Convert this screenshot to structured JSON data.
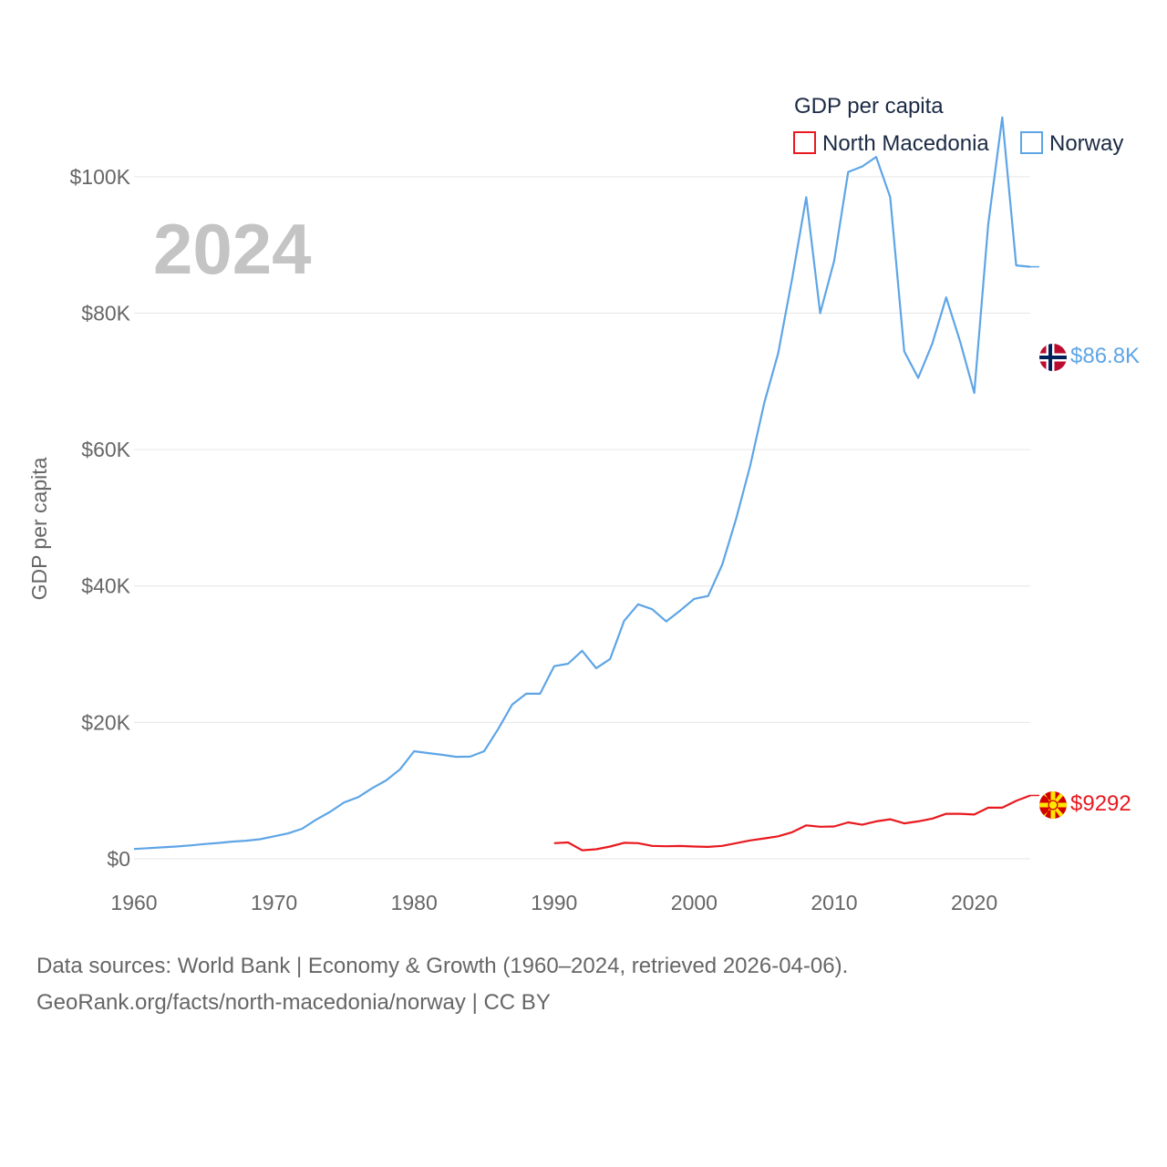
{
  "chart_data": {
    "type": "line",
    "ylabel": "GDP per capita",
    "year_label": "2024",
    "legend": {
      "title": "GDP per capita",
      "placement": "top-right"
    },
    "xlim": [
      1960,
      2024
    ],
    "ylim": [
      0,
      110000
    ],
    "xticks": [
      1960,
      1970,
      1980,
      1990,
      2000,
      2010,
      2020
    ],
    "xtick_labels": [
      "1960",
      "1970",
      "1980",
      "1990",
      "2000",
      "2010",
      "2020"
    ],
    "yticks": [
      0,
      20000,
      40000,
      60000,
      80000,
      100000
    ],
    "ytick_labels": [
      "$0",
      "$20K",
      "$40K",
      "$60K",
      "$80K",
      "$100K"
    ],
    "series": [
      {
        "name": "North Macedonia",
        "color": "#e8191f",
        "end_label": "$9292",
        "flag": "north-macedonia-flag-icon",
        "x": [
          1990,
          1991,
          1992,
          1993,
          1994,
          1995,
          1996,
          1997,
          1998,
          1999,
          2000,
          2001,
          2002,
          2003,
          2004,
          2005,
          2006,
          2007,
          2008,
          2009,
          2010,
          2011,
          2012,
          2013,
          2014,
          2015,
          2016,
          2017,
          2018,
          2019,
          2020,
          2021,
          2022,
          2023,
          2024
        ],
        "values": [
          2300,
          2400,
          1250,
          1400,
          1800,
          2350,
          2300,
          1900,
          1850,
          1880,
          1800,
          1750,
          1900,
          2300,
          2700,
          3000,
          3300,
          3900,
          4900,
          4700,
          4750,
          5350,
          5000,
          5500,
          5800,
          5200,
          5500,
          5900,
          6600,
          6600,
          6500,
          7500,
          7500,
          8500,
          9292
        ]
      },
      {
        "name": "Norway",
        "color": "#5ea5e6",
        "end_label": "$86.8K",
        "flag": "norway-flag-icon",
        "x": [
          1960,
          1961,
          1962,
          1963,
          1964,
          1965,
          1966,
          1967,
          1968,
          1969,
          1970,
          1971,
          1972,
          1973,
          1974,
          1975,
          1976,
          1977,
          1978,
          1979,
          1980,
          1981,
          1982,
          1983,
          1984,
          1985,
          1986,
          1987,
          1988,
          1989,
          1990,
          1991,
          1992,
          1993,
          1994,
          1995,
          1996,
          1997,
          1998,
          1999,
          2000,
          2001,
          2002,
          2003,
          2004,
          2005,
          2006,
          2007,
          2008,
          2009,
          2010,
          2011,
          2012,
          2013,
          2014,
          2015,
          2016,
          2017,
          2018,
          2019,
          2020,
          2021,
          2022,
          2023,
          2024
        ],
        "values": [
          1440,
          1560,
          1690,
          1800,
          1960,
          2160,
          2320,
          2520,
          2660,
          2880,
          3300,
          3730,
          4410,
          5740,
          6880,
          8280,
          9040,
          10350,
          11500,
          13130,
          15770,
          15500,
          15250,
          14950,
          14980,
          15770,
          19000,
          22600,
          24200,
          24200,
          28240,
          28600,
          30500,
          27950,
          29300,
          34900,
          37320,
          36600,
          34800,
          36400,
          38100,
          38540,
          43100,
          49900,
          57600,
          66800,
          74100,
          85100,
          97000,
          80000,
          87700,
          100700,
          101500,
          102900,
          97000,
          74400,
          70500,
          75500,
          82300,
          75800,
          68300,
          93000,
          108700,
          87000,
          86800
        ]
      }
    ]
  },
  "footer": {
    "line1": "Data sources: World Bank | Economy & Growth (1960–2024, retrieved 2026-04-06).",
    "line2": "GeoRank.org/facts/north-macedonia/norway | CC BY"
  }
}
